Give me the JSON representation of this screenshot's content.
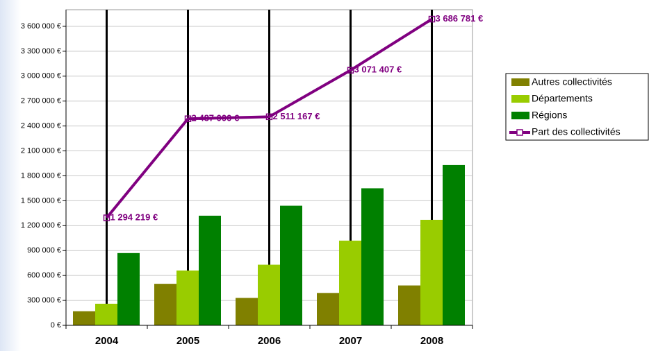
{
  "chart_data": {
    "type": "bar_line",
    "categories": [
      "2004",
      "2005",
      "2006",
      "2007",
      "2008"
    ],
    "series": [
      {
        "name": "Autres collectivités",
        "color": "#808000",
        "type": "bar",
        "values": [
          170000,
          500000,
          330000,
          390000,
          480000
        ]
      },
      {
        "name": "Départements",
        "color": "#99cc00",
        "type": "bar",
        "values": [
          260000,
          660000,
          730000,
          1020000,
          1270000
        ]
      },
      {
        "name": "Régions",
        "color": "#008000",
        "type": "bar",
        "values": [
          870000,
          1320000,
          1440000,
          1650000,
          1930000
        ]
      },
      {
        "name": "Part des collectivités",
        "color": "#800080",
        "type": "line",
        "values": [
          1294219,
          2487000,
          2511167,
          3071407,
          3686781
        ],
        "value_labels": [
          "1 294 219 €",
          "2 487 000 €",
          "2 511 167 €",
          "3 071 407 €",
          "3 686 781 €"
        ]
      }
    ],
    "ylim": [
      0,
      3800000
    ],
    "yticks": [
      {
        "value": 0,
        "label": "0 €"
      },
      {
        "value": 300000,
        "label": "300 000 €"
      },
      {
        "value": 600000,
        "label": "600 000 €"
      },
      {
        "value": 900000,
        "label": "900 000 €"
      },
      {
        "value": 1200000,
        "label": "1 200 000 €"
      },
      {
        "value": 1500000,
        "label": "1 500 000 €"
      },
      {
        "value": 1800000,
        "label": "1 800 000 €"
      },
      {
        "value": 2100000,
        "label": "2 100 000 €"
      },
      {
        "value": 2400000,
        "label": "2 400 000 €"
      },
      {
        "value": 2700000,
        "label": "2 700 000 €"
      },
      {
        "value": 3000000,
        "label": "3 000 000 €"
      },
      {
        "value": 3300000,
        "label": "3 300 000 €"
      },
      {
        "value": 3600000,
        "label": "3 600 000 €"
      }
    ],
    "grid": true,
    "legend": "right"
  }
}
